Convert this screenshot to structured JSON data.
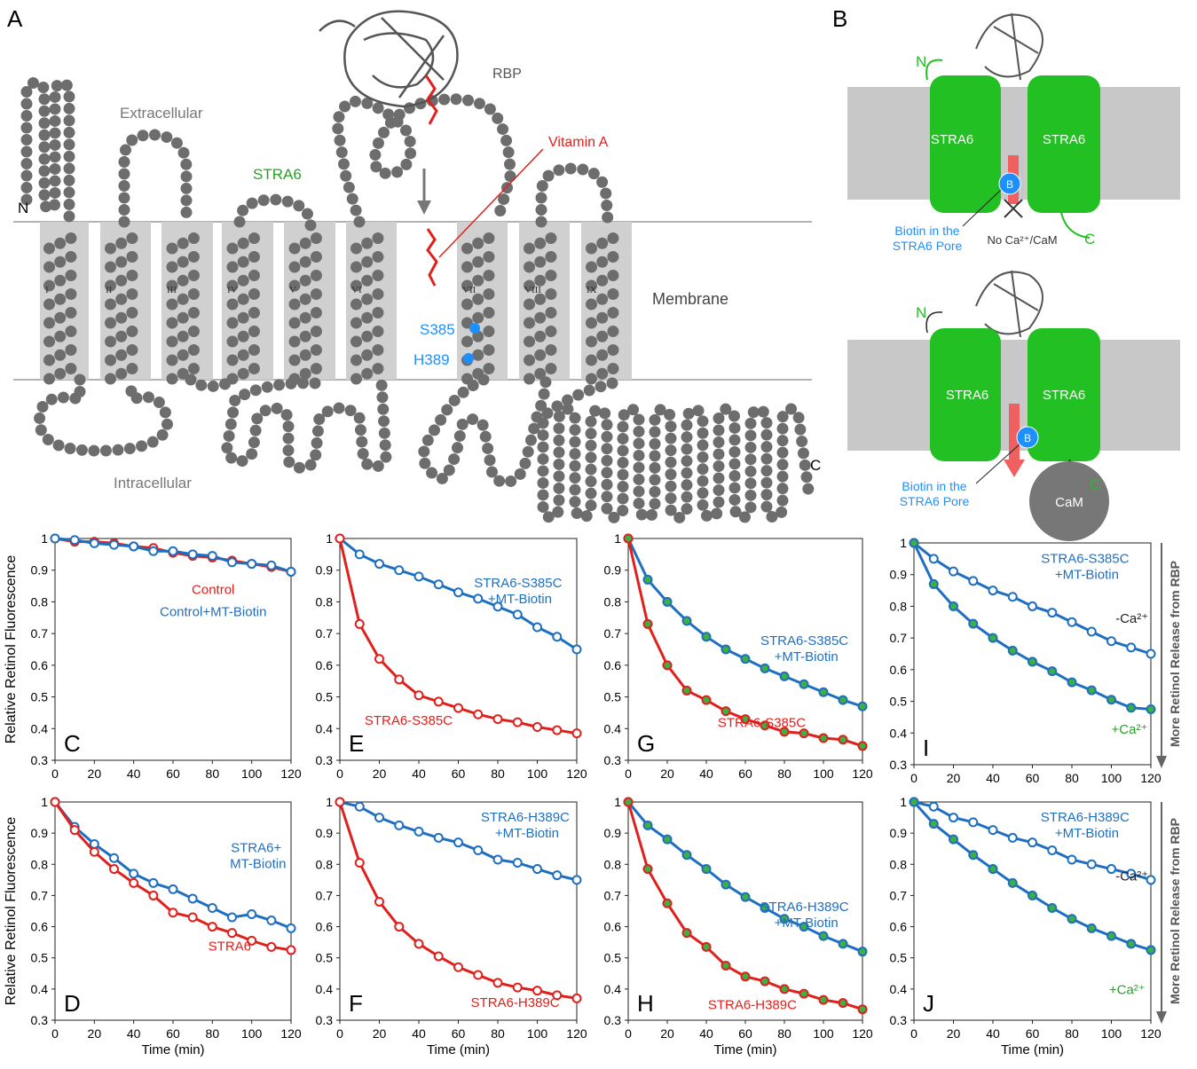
{
  "panel_a": {
    "letter": "A",
    "n_term": "N",
    "extracellular": "Extracellular",
    "protein": "STRA6",
    "rbp": "RBP",
    "vitamin_a": "Vitamin A",
    "membrane": "Membrane",
    "s385": "S385",
    "h389": "H389",
    "intracellular": "Intracellular",
    "c_term": "C",
    "helices": [
      "I",
      "II",
      "III",
      "IV",
      "V",
      "VI",
      "VII",
      "VIII",
      "IX"
    ]
  },
  "panel_b": {
    "letter": "B",
    "top": {
      "n_term": "N",
      "left": "STRA6",
      "right": "STRA6",
      "biotin": "B",
      "biotin_label": [
        "Biotin in the",
        "STRA6 Pore"
      ],
      "condition": "No Ca²⁺/CaM",
      "c_term": "C"
    },
    "bottom": {
      "n_term": "N",
      "left": "STRA6",
      "right": "STRA6",
      "biotin": "B",
      "biotin_label": [
        "Biotin in the",
        "STRA6 Pore"
      ],
      "c_term": "C",
      "cam": "CaM"
    }
  },
  "chart_data": [
    {
      "type": "line",
      "panel": "C",
      "ylabel": "Relative Retinol Fluorescence",
      "x": [
        0,
        10,
        20,
        30,
        40,
        50,
        60,
        70,
        80,
        90,
        100,
        110,
        120
      ],
      "xlim": [
        0,
        120
      ],
      "xticks": [
        0,
        20,
        40,
        60,
        80,
        100,
        120
      ],
      "ylim": [
        0.3,
        1
      ],
      "yticks": [
        0.3,
        0.4,
        0.5,
        0.6,
        0.7,
        0.8,
        0.9,
        1
      ],
      "series": [
        {
          "name": "Control",
          "color": "#e0201c",
          "marker_fill": "#ffffff",
          "values": [
            1,
            0.99,
            0.99,
            0.985,
            0.975,
            0.97,
            0.955,
            0.945,
            0.94,
            0.93,
            0.92,
            0.91,
            0.895
          ]
        },
        {
          "name": "Control+MT-Biotin",
          "color": "#1f6fc0",
          "marker_fill": "#ffffff",
          "values": [
            1,
            0.995,
            0.985,
            0.98,
            0.975,
            0.96,
            0.96,
            0.95,
            0.945,
            0.925,
            0.92,
            0.915,
            0.895
          ]
        }
      ]
    },
    {
      "type": "line",
      "panel": "E",
      "x": [
        0,
        10,
        20,
        30,
        40,
        50,
        60,
        70,
        80,
        90,
        100,
        110,
        120
      ],
      "xlim": [
        0,
        120
      ],
      "xticks": [
        0,
        20,
        40,
        60,
        80,
        100,
        120
      ],
      "ylim": [
        0.3,
        1
      ],
      "yticks": [
        0.3,
        0.4,
        0.5,
        0.6,
        0.7,
        0.8,
        0.9,
        1
      ],
      "series": [
        {
          "name": "STRA6-S385C +MT-Biotin",
          "color": "#1f6fc0",
          "marker_fill": "#ffffff",
          "values": [
            1,
            0.95,
            0.92,
            0.9,
            0.88,
            0.855,
            0.83,
            0.81,
            0.785,
            0.76,
            0.72,
            0.69,
            0.65
          ]
        },
        {
          "name": "STRA6-S385C",
          "color": "#e0201c",
          "marker_fill": "#ffffff",
          "values": [
            1,
            0.73,
            0.62,
            0.555,
            0.505,
            0.485,
            0.465,
            0.445,
            0.43,
            0.42,
            0.405,
            0.395,
            0.385
          ]
        }
      ]
    },
    {
      "type": "line",
      "panel": "G",
      "x": [
        0,
        10,
        20,
        30,
        40,
        50,
        60,
        70,
        80,
        90,
        100,
        110,
        120
      ],
      "xlim": [
        0,
        120
      ],
      "xticks": [
        0,
        20,
        40,
        60,
        80,
        100,
        120
      ],
      "ylim": [
        0.3,
        1
      ],
      "yticks": [
        0.3,
        0.4,
        0.5,
        0.6,
        0.7,
        0.8,
        0.9,
        1
      ],
      "series": [
        {
          "name": "STRA6-S385C +MT-Biotin",
          "color": "#1f6fc0",
          "marker_fill": "#3cb043",
          "values": [
            1,
            0.87,
            0.8,
            0.74,
            0.69,
            0.65,
            0.62,
            0.59,
            0.565,
            0.54,
            0.515,
            0.49,
            0.47
          ]
        },
        {
          "name": "STRA6-S385C",
          "color": "#e0201c",
          "marker_fill": "#3cb043",
          "values": [
            1,
            0.73,
            0.6,
            0.52,
            0.49,
            0.455,
            0.43,
            0.41,
            0.39,
            0.385,
            0.37,
            0.365,
            0.345
          ]
        }
      ]
    },
    {
      "type": "line",
      "panel": "I",
      "annotation": "STRA6-S385C +MT-Biotin",
      "side_label": "More Retinol Release from RBP",
      "x": [
        0,
        10,
        20,
        30,
        40,
        50,
        60,
        70,
        80,
        90,
        100,
        110,
        120
      ],
      "xlim": [
        0,
        120
      ],
      "xticks": [
        0,
        20,
        40,
        60,
        80,
        100,
        120
      ],
      "ylim": [
        0.3,
        1
      ],
      "yticks": [
        0.3,
        0.4,
        0.5,
        0.6,
        0.7,
        0.8,
        0.9,
        1
      ],
      "series": [
        {
          "name": "-Ca²⁺",
          "color": "#1f6fc0",
          "marker_fill": "#ffffff",
          "label_color": "#222222",
          "values": [
            1,
            0.95,
            0.91,
            0.88,
            0.85,
            0.83,
            0.8,
            0.78,
            0.75,
            0.72,
            0.69,
            0.67,
            0.65
          ]
        },
        {
          "name": "+Ca²⁺",
          "color": "#1f6fc0",
          "marker_fill": "#3cb043",
          "label_color": "#2aa02a",
          "values": [
            1,
            0.87,
            0.8,
            0.745,
            0.7,
            0.66,
            0.625,
            0.595,
            0.56,
            0.535,
            0.505,
            0.48,
            0.475
          ]
        }
      ]
    },
    {
      "type": "line",
      "panel": "D",
      "ylabel": "Relative Retinol Fluorescence",
      "xlabel": "Time (min)",
      "x": [
        0,
        10,
        20,
        30,
        40,
        50,
        60,
        70,
        80,
        90,
        100,
        110,
        120
      ],
      "xlim": [
        0,
        120
      ],
      "xticks": [
        0,
        20,
        40,
        60,
        80,
        100,
        120
      ],
      "ylim": [
        0.3,
        1
      ],
      "yticks": [
        0.3,
        0.4,
        0.5,
        0.6,
        0.7,
        0.8,
        0.9,
        1
      ],
      "series": [
        {
          "name": "STRA6+ MT-Biotin",
          "color": "#1f6fc0",
          "marker_fill": "#ffffff",
          "values": [
            1,
            0.92,
            0.865,
            0.82,
            0.77,
            0.74,
            0.72,
            0.69,
            0.66,
            0.63,
            0.64,
            0.62,
            0.595
          ]
        },
        {
          "name": "STRA6",
          "color": "#e0201c",
          "marker_fill": "#ffffff",
          "values": [
            1,
            0.91,
            0.84,
            0.785,
            0.74,
            0.7,
            0.645,
            0.63,
            0.6,
            0.58,
            0.555,
            0.535,
            0.525
          ]
        }
      ]
    },
    {
      "type": "line",
      "panel": "F",
      "xlabel": "Time (min)",
      "x": [
        0,
        10,
        20,
        30,
        40,
        50,
        60,
        70,
        80,
        90,
        100,
        110,
        120
      ],
      "xlim": [
        0,
        120
      ],
      "xticks": [
        0,
        20,
        40,
        60,
        80,
        100,
        120
      ],
      "ylim": [
        0.3,
        1
      ],
      "yticks": [
        0.3,
        0.4,
        0.5,
        0.6,
        0.7,
        0.8,
        0.9,
        1
      ],
      "series": [
        {
          "name": "STRA6-H389C +MT-Biotin",
          "color": "#1f6fc0",
          "marker_fill": "#ffffff",
          "values": [
            1,
            0.985,
            0.95,
            0.925,
            0.905,
            0.885,
            0.87,
            0.845,
            0.815,
            0.805,
            0.785,
            0.765,
            0.75
          ]
        },
        {
          "name": "STRA6-H389C",
          "color": "#e0201c",
          "marker_fill": "#ffffff",
          "values": [
            1,
            0.805,
            0.68,
            0.6,
            0.545,
            0.505,
            0.47,
            0.445,
            0.42,
            0.405,
            0.395,
            0.38,
            0.37
          ]
        }
      ]
    },
    {
      "type": "line",
      "panel": "H",
      "xlabel": "Time (min)",
      "x": [
        0,
        10,
        20,
        30,
        40,
        50,
        60,
        70,
        80,
        90,
        100,
        110,
        120
      ],
      "xlim": [
        0,
        120
      ],
      "xticks": [
        0,
        20,
        40,
        60,
        80,
        100,
        120
      ],
      "ylim": [
        0.3,
        1
      ],
      "yticks": [
        0.3,
        0.4,
        0.5,
        0.6,
        0.7,
        0.8,
        0.9,
        1
      ],
      "series": [
        {
          "name": "STRA6-H389C +MT-Biotin",
          "color": "#1f6fc0",
          "marker_fill": "#3cb043",
          "values": [
            1,
            0.925,
            0.88,
            0.83,
            0.785,
            0.735,
            0.695,
            0.66,
            0.625,
            0.6,
            0.57,
            0.545,
            0.52
          ]
        },
        {
          "name": "STRA6-H389C",
          "color": "#e0201c",
          "marker_fill": "#3cb043",
          "values": [
            1,
            0.785,
            0.675,
            0.58,
            0.535,
            0.475,
            0.44,
            0.425,
            0.4,
            0.385,
            0.365,
            0.355,
            0.335
          ]
        }
      ]
    },
    {
      "type": "line",
      "panel": "J",
      "xlabel": "Time (min)",
      "annotation": "STRA6-H389C +MT-Biotin",
      "side_label": "More Retinol Release from RBP",
      "x": [
        0,
        10,
        20,
        30,
        40,
        50,
        60,
        70,
        80,
        90,
        100,
        110,
        120
      ],
      "xlim": [
        0,
        120
      ],
      "xticks": [
        0,
        20,
        40,
        60,
        80,
        100,
        120
      ],
      "ylim": [
        0.3,
        1
      ],
      "yticks": [
        0.3,
        0.4,
        0.5,
        0.6,
        0.7,
        0.8,
        0.9,
        1
      ],
      "series": [
        {
          "name": "-Ca²⁺",
          "color": "#1f6fc0",
          "marker_fill": "#ffffff",
          "label_color": "#222222",
          "values": [
            1,
            0.985,
            0.95,
            0.935,
            0.91,
            0.885,
            0.87,
            0.845,
            0.815,
            0.8,
            0.785,
            0.77,
            0.75
          ]
        },
        {
          "name": "+Ca²⁺",
          "color": "#1f6fc0",
          "marker_fill": "#3cb043",
          "label_color": "#2aa02a",
          "values": [
            1,
            0.93,
            0.88,
            0.83,
            0.785,
            0.74,
            0.7,
            0.66,
            0.625,
            0.595,
            0.57,
            0.545,
            0.525
          ]
        }
      ]
    }
  ]
}
